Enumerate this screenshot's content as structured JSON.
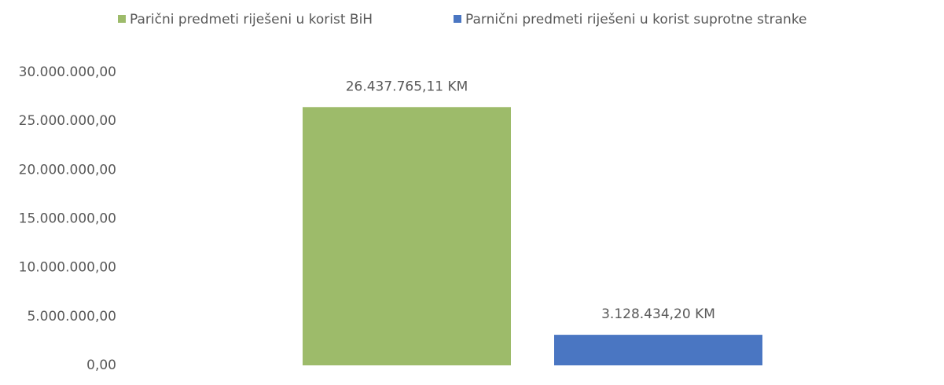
{
  "chart_data": {
    "type": "bar",
    "categories": [
      null
    ],
    "series": [
      {
        "name": "Parični predmeti riješeni u korist BiH",
        "color": "#9dbb6a",
        "values": [
          26437765.11
        ],
        "value_labels": [
          "26.437.765,11 KM"
        ]
      },
      {
        "name": "Parnični predmeti riješeni u korist suprotne stranke",
        "color": "#4a76c2",
        "values": [
          3128434.2
        ],
        "value_labels": [
          "3.128.434,20 KM"
        ]
      }
    ],
    "ylim": [
      0,
      30000000
    ],
    "yticks": [
      {
        "value": 0,
        "label": "0,00"
      },
      {
        "value": 5000000,
        "label": "5.000.000,00"
      },
      {
        "value": 10000000,
        "label": "10.000.000,00"
      },
      {
        "value": 15000000,
        "label": "15.000.000,00"
      },
      {
        "value": 20000000,
        "label": "20.000.000,00"
      },
      {
        "value": 25000000,
        "label": "25.000.000,00"
      },
      {
        "value": 30000000,
        "label": "30.000.000,00"
      }
    ],
    "grid": false,
    "legend": "top"
  }
}
